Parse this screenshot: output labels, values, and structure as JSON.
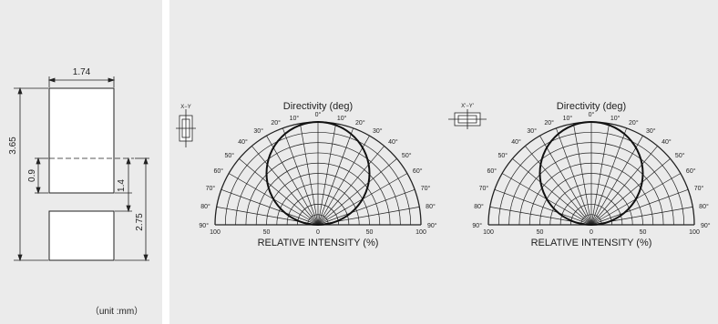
{
  "dimensions": {
    "width": "1.74",
    "total_height": "3.65",
    "lower_offset": "0.9",
    "pad_gap": "1.4",
    "pad_span": "2.75",
    "unit_note": "（unit :mm）"
  },
  "polar_charts": [
    {
      "title": "Directivity (deg)",
      "orientation_label": "X−Y",
      "xlabel": "RELATIVE INTENSITY  (%)",
      "angle_ticks": [
        "0°",
        "10°",
        "20°",
        "30°",
        "40°",
        "50°",
        "60°",
        "70°",
        "80°",
        "90°"
      ],
      "radial_ticks": [
        "100",
        "50",
        "0",
        "50",
        "100"
      ]
    },
    {
      "title": "Directivity (deg)",
      "orientation_label": "X'−Y'",
      "xlabel": "RELATIVE INTENSITY  (%)",
      "angle_ticks": [
        "0°",
        "10°",
        "20°",
        "30°",
        "40°",
        "50°",
        "60°",
        "70°",
        "80°",
        "90°"
      ],
      "radial_ticks": [
        "100",
        "50",
        "0",
        "50",
        "100"
      ]
    }
  ],
  "colors": {
    "panel_bg": "#ebebeb",
    "line": "#222222"
  }
}
